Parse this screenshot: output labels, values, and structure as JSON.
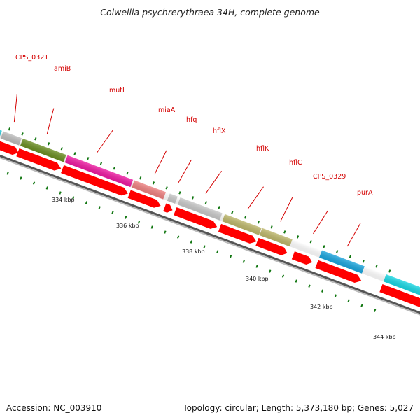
{
  "title": "Colwellia psychrerythraea 34H, complete genome",
  "footer": {
    "accession": "Accession: NC_003910",
    "stats": "Topology: circular; Length: 5,373,180 bp; Genes: 5,027"
  },
  "colors": {
    "cds_arrow": "#ff0000",
    "gene_label": "#d40000",
    "tick": "#127712",
    "backbone": "#555555"
  },
  "gene_labels": [
    "CPS_0321",
    "amiB",
    "mutL",
    "miaA",
    "hfq",
    "hflX",
    "hflK",
    "hflC",
    "CPS_0329",
    "purA"
  ],
  "scale_labels": [
    "334 kbp",
    "336 kbp",
    "338 kbp",
    "340 kbp",
    "342 kbp",
    "344 kbp"
  ]
}
